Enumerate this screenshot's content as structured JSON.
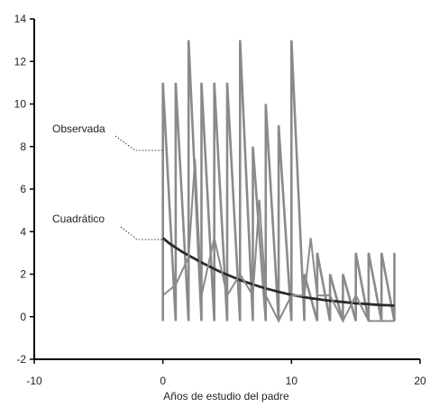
{
  "chart_data": {
    "type": "line",
    "xlabel": "Años de estudio del padre",
    "ylabel": "",
    "xlim": [
      -10,
      20
    ],
    "ylim": [
      -2,
      14
    ],
    "x_ticks": [
      -10,
      0,
      10,
      20
    ],
    "y_ticks": [
      -2,
      0,
      2,
      4,
      6,
      8,
      10,
      12,
      14
    ],
    "grid": false,
    "legend": "none",
    "colors": {
      "observed": "#8a8a8a",
      "fitted": "#2a2a2a",
      "axis": "#000000",
      "leader": "#333333"
    },
    "annotations": [
      {
        "text": "Observada",
        "series": 0
      },
      {
        "text": "Cuadrático",
        "series": 1
      }
    ],
    "series": [
      {
        "values_x": [
          0,
          0,
          1,
          1,
          2,
          2,
          3,
          3,
          4,
          4,
          5,
          5,
          6,
          6,
          7,
          7,
          8,
          8,
          9,
          9,
          10,
          10,
          11,
          11,
          12,
          12,
          13,
          13,
          14,
          14,
          15,
          15,
          16,
          16,
          17,
          17,
          18,
          18
        ],
        "values_y": [
          -0.2,
          11,
          -0.2,
          11,
          -0.2,
          13,
          -0.2,
          11,
          -0.2,
          11,
          -0.2,
          11,
          -0.2,
          13,
          -0.2,
          8,
          -0.2,
          10,
          -0.2,
          9,
          -0.2,
          13,
          -0.2,
          2,
          -0.2,
          3,
          -0.2,
          2,
          -0.2,
          2,
          -0.2,
          3,
          -0.2,
          3,
          -0.2,
          3,
          -0.2,
          3
        ]
      },
      {
        "values_x": [
          0,
          0.5,
          1,
          1.5,
          2,
          2.5,
          3,
          3.5,
          4,
          4.5,
          5,
          5.5,
          6,
          6.5,
          7,
          7.5,
          8,
          8.5,
          9,
          9.5,
          10,
          10.5,
          11,
          11.5,
          12,
          12.5,
          13,
          13.5,
          14,
          14.5,
          15,
          15.5,
          16,
          16.5,
          17,
          17.5,
          18
        ],
        "values_y": [
          3.7,
          3.45,
          3.25,
          3.05,
          2.88,
          2.72,
          2.55,
          2.4,
          2.25,
          2.1,
          1.98,
          1.85,
          1.73,
          1.62,
          1.52,
          1.42,
          1.33,
          1.25,
          1.17,
          1.1,
          1.03,
          0.97,
          0.92,
          0.87,
          0.83,
          0.79,
          0.75,
          0.72,
          0.69,
          0.66,
          0.63,
          0.61,
          0.59,
          0.57,
          0.55,
          0.54,
          0.52
        ]
      },
      {
        "values_x": [
          0,
          1,
          2,
          2.5,
          3,
          4,
          5,
          6,
          7,
          7.5,
          8,
          9,
          10,
          11,
          11.5,
          12,
          13,
          14,
          15,
          16,
          17,
          18
        ],
        "values_y": [
          1,
          1.5,
          2.8,
          7.4,
          1,
          3.7,
          1,
          2,
          1,
          5.5,
          1,
          -0.2,
          1,
          1,
          3.7,
          1,
          1,
          -0.2,
          1,
          -0.2,
          -0.2,
          -0.2
        ]
      }
    ]
  }
}
